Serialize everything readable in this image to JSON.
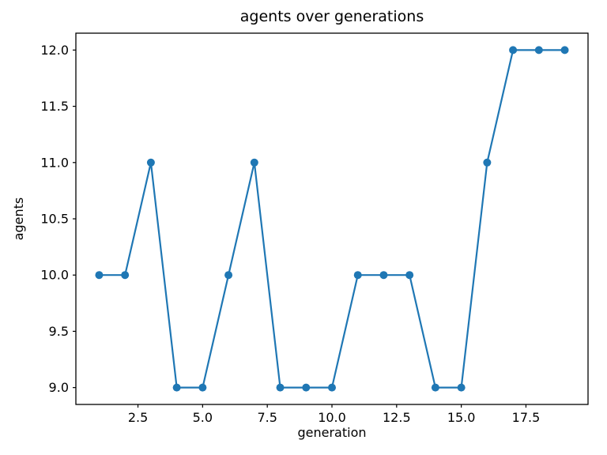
{
  "chart_data": {
    "type": "line",
    "title": "agents over generations",
    "xlabel": "generation",
    "ylabel": "agents",
    "x": [
      1,
      2,
      3,
      4,
      5,
      6,
      7,
      8,
      9,
      10,
      11,
      12,
      13,
      14,
      15,
      16,
      17,
      18,
      19
    ],
    "y": [
      10,
      10,
      11,
      9,
      9,
      10,
      11,
      9,
      9,
      9,
      10,
      10,
      10,
      9,
      9,
      11,
      12,
      12,
      12
    ],
    "xlim": [
      0.1,
      19.9
    ],
    "ylim": [
      8.85,
      12.15
    ],
    "xticks": [
      2.5,
      5.0,
      7.5,
      10.0,
      12.5,
      15.0,
      17.5
    ],
    "xtick_labels": [
      "2.5",
      "5.0",
      "7.5",
      "10.0",
      "12.5",
      "15.0",
      "17.5"
    ],
    "yticks": [
      9.0,
      9.5,
      10.0,
      10.5,
      11.0,
      11.5,
      12.0
    ],
    "ytick_labels": [
      "9.0",
      "9.5",
      "10.0",
      "10.5",
      "11.0",
      "11.5",
      "12.0"
    ],
    "line_color": "#1f77b4",
    "marker": "circle",
    "grid": false,
    "legend": "none"
  }
}
